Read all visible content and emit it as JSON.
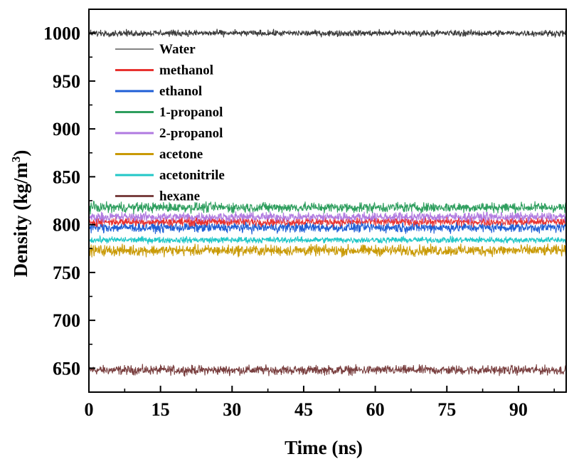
{
  "chart_data": {
    "type": "line",
    "title": "",
    "xlabel": "Time (ns)",
    "ylabel_main": "Density (kg/m",
    "ylabel_sup": "3",
    "ylabel_close": ")",
    "xlim": [
      0,
      100
    ],
    "ylim": [
      625,
      1025
    ],
    "xticks": [
      0,
      15,
      30,
      45,
      60,
      75,
      90
    ],
    "yticks": [
      650,
      700,
      750,
      800,
      850,
      900,
      950,
      1000
    ],
    "x_minor_step": 7.5,
    "y_minor_step": 25,
    "grid": false,
    "legend_position": "upper-left",
    "series": [
      {
        "name": "Water",
        "color": "#3a3a3a",
        "mean": 1000,
        "noise": 1.6,
        "legend_thin": true
      },
      {
        "name": "methanol",
        "color": "#e8322f",
        "mean": 803,
        "noise": 2.2
      },
      {
        "name": "ethanol",
        "color": "#1f5fd6",
        "mean": 797,
        "noise": 2.6
      },
      {
        "name": "1-propanol",
        "color": "#2e9e5e",
        "mean": 818,
        "noise": 2.6
      },
      {
        "name": "2-propanol",
        "color": "#b07ae0",
        "mean": 808,
        "noise": 2.4
      },
      {
        "name": "acetone",
        "color": "#c99a06",
        "mean": 773,
        "noise": 2.8
      },
      {
        "name": "acetonitrile",
        "color": "#22c7c7",
        "mean": 784,
        "noise": 1.6
      },
      {
        "name": "hexane",
        "color": "#7a4040",
        "mean": 648,
        "noise": 2.4
      }
    ]
  }
}
